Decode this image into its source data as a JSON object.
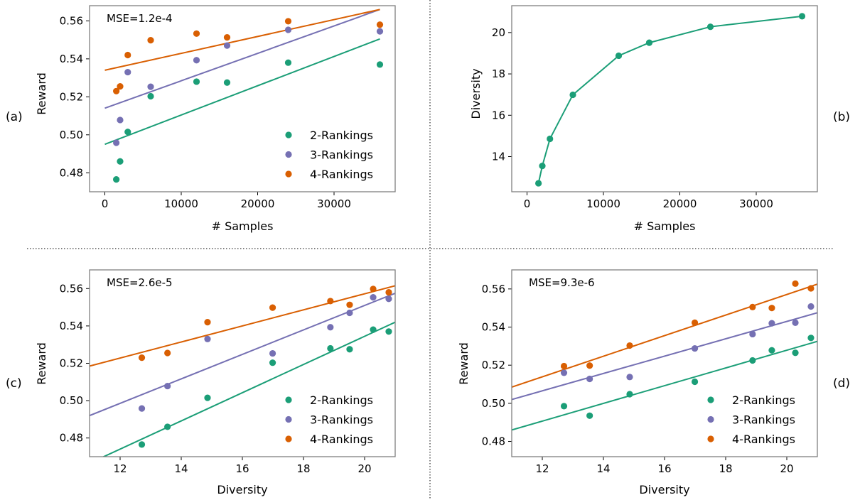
{
  "colors": {
    "green": "#1b9e77",
    "purple": "#7570b3",
    "orange": "#d95f02",
    "frame": "#808080",
    "divider": "#000000"
  },
  "chart_data": [
    {
      "id": "a",
      "type": "scatter",
      "panel_label": "(a)",
      "title": "",
      "annotation": "MSE=1.2e-4",
      "xlabel": "# Samples",
      "ylabel": "Reward",
      "xlim": [
        -2000,
        38000
      ],
      "ylim": [
        0.47,
        0.568
      ],
      "xticks": [
        0,
        10000,
        20000,
        30000
      ],
      "yticks": [
        0.48,
        0.5,
        0.52,
        0.54,
        0.56
      ],
      "ytick_decimals": 2,
      "legend": "lower-right",
      "series": [
        {
          "name": "2-Rankings",
          "color": "#1b9e77",
          "x": [
            1500,
            2000,
            3000,
            6000,
            12000,
            16000,
            24000,
            36000
          ],
          "y": [
            0.4765,
            0.486,
            0.5015,
            0.5203,
            0.528,
            0.5275,
            0.538,
            0.537
          ],
          "fit": [
            [
              0,
              0.495
            ],
            [
              36000,
              0.5505
            ]
          ]
        },
        {
          "name": "3-Rankings",
          "color": "#7570b3",
          "x": [
            1500,
            2000,
            3000,
            6000,
            12000,
            16000,
            24000,
            36000
          ],
          "y": [
            0.4958,
            0.5078,
            0.533,
            0.5253,
            0.5393,
            0.547,
            0.5553,
            0.5545
          ],
          "fit": [
            [
              0,
              0.514
            ],
            [
              36000,
              0.566
            ]
          ]
        },
        {
          "name": "4-Rankings",
          "color": "#d95f02",
          "x": [
            1500,
            2000,
            3000,
            6000,
            12000,
            16000,
            24000,
            36000
          ],
          "y": [
            0.523,
            0.5255,
            0.542,
            0.5498,
            0.5533,
            0.5513,
            0.5598,
            0.558
          ],
          "fit": [
            [
              0,
              0.534
            ],
            [
              36000,
              0.566
            ]
          ]
        }
      ]
    },
    {
      "id": "b",
      "type": "line",
      "panel_label": "(b)",
      "title": "",
      "xlabel": "# Samples",
      "ylabel": "Diversity",
      "xlim": [
        -2000,
        38000
      ],
      "ylim": [
        12.3,
        21.3
      ],
      "xticks": [
        0,
        10000,
        20000,
        30000
      ],
      "yticks": [
        14,
        16,
        18,
        20
      ],
      "ytick_decimals": 0,
      "legend": "none",
      "series": [
        {
          "name": "",
          "color": "#1b9e77",
          "x": [
            1500,
            2000,
            3000,
            6000,
            12000,
            16000,
            24000,
            36000
          ],
          "y": [
            12.71,
            13.55,
            14.86,
            16.99,
            18.88,
            19.51,
            20.28,
            20.79
          ]
        }
      ]
    },
    {
      "id": "c",
      "type": "scatter",
      "panel_label": "(c)",
      "title": "",
      "annotation": "MSE=2.6e-5",
      "xlabel": "Diversity",
      "ylabel": "Reward",
      "xlim": [
        11.0,
        21.0
      ],
      "ylim": [
        0.47,
        0.57
      ],
      "xticks": [
        12,
        14,
        16,
        18,
        20
      ],
      "yticks": [
        0.48,
        0.5,
        0.52,
        0.54,
        0.56
      ],
      "ytick_decimals": 2,
      "legend": "lower-right",
      "series": [
        {
          "name": "2-Rankings",
          "color": "#1b9e77",
          "x": [
            12.71,
            13.55,
            14.86,
            16.99,
            18.88,
            19.51,
            20.28,
            20.79
          ],
          "y": [
            0.4765,
            0.486,
            0.5015,
            0.5203,
            0.528,
            0.5275,
            0.538,
            0.537
          ],
          "fit": [
            [
              11.0,
              0.4665
            ],
            [
              21.0,
              0.542
            ]
          ]
        },
        {
          "name": "3-Rankings",
          "color": "#7570b3",
          "x": [
            12.71,
            13.55,
            14.86,
            16.99,
            18.88,
            19.51,
            20.28,
            20.79
          ],
          "y": [
            0.4958,
            0.5078,
            0.533,
            0.5253,
            0.5393,
            0.547,
            0.5553,
            0.5545
          ],
          "fit": [
            [
              11.0,
              0.492
            ],
            [
              21.0,
              0.5575
            ]
          ]
        },
        {
          "name": "4-Rankings",
          "color": "#d95f02",
          "x": [
            12.71,
            13.55,
            14.86,
            16.99,
            18.88,
            19.51,
            20.28,
            20.79
          ],
          "y": [
            0.523,
            0.5255,
            0.542,
            0.5498,
            0.5533,
            0.5513,
            0.5598,
            0.558
          ],
          "fit": [
            [
              11.0,
              0.5185
            ],
            [
              21.0,
              0.5615
            ]
          ]
        }
      ]
    },
    {
      "id": "d",
      "type": "scatter",
      "panel_label": "(d)",
      "title": "",
      "annotation": "MSE=9.3e-6",
      "xlabel": "Diversity",
      "ylabel": "Reward",
      "xlim": [
        11.0,
        21.0
      ],
      "ylim": [
        0.472,
        0.57
      ],
      "xticks": [
        12,
        14,
        16,
        18,
        20
      ],
      "yticks": [
        0.48,
        0.5,
        0.52,
        0.54,
        0.56
      ],
      "ytick_decimals": 2,
      "legend": "lower-right",
      "series": [
        {
          "name": "2-Rankings",
          "color": "#1b9e77",
          "x": [
            12.71,
            13.55,
            14.86,
            16.99,
            18.88,
            19.51,
            20.28,
            20.79
          ],
          "y": [
            0.4985,
            0.4935,
            0.5048,
            0.5113,
            0.5225,
            0.5278,
            0.5265,
            0.5343
          ],
          "fit": [
            [
              11.0,
              0.486
            ],
            [
              21.0,
              0.5325
            ]
          ]
        },
        {
          "name": "3-Rankings",
          "color": "#7570b3",
          "x": [
            12.71,
            13.55,
            14.86,
            16.99,
            18.88,
            19.51,
            20.28,
            20.79
          ],
          "y": [
            0.516,
            0.5128,
            0.5138,
            0.5288,
            0.5363,
            0.542,
            0.5423,
            0.5508
          ],
          "fit": [
            [
              11.0,
              0.502
            ],
            [
              21.0,
              0.5475
            ]
          ]
        },
        {
          "name": "4-Rankings",
          "color": "#d95f02",
          "x": [
            12.71,
            13.55,
            14.86,
            16.99,
            18.88,
            19.51,
            20.28,
            20.79
          ],
          "y": [
            0.5195,
            0.5198,
            0.5303,
            0.5423,
            0.5505,
            0.55,
            0.5628,
            0.5603
          ],
          "fit": [
            [
              11.0,
              0.5085
            ],
            [
              21.0,
              0.5625
            ]
          ]
        }
      ]
    }
  ]
}
